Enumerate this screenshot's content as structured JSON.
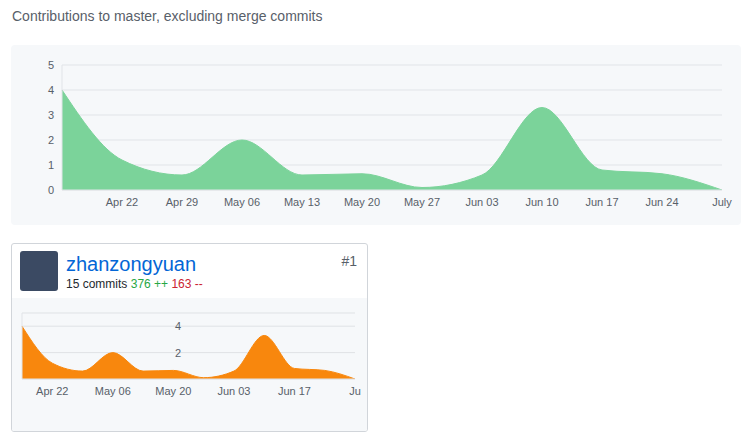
{
  "title": "Contributions to master, excluding merge commits",
  "chart_data": [
    {
      "type": "area",
      "categories": [
        null,
        "Apr 22",
        "Apr 29",
        "May 06",
        "May 13",
        "May 20",
        "May 27",
        "Jun 03",
        "Jun 10",
        "Jun 17",
        "Jun 24",
        "July"
      ],
      "values": [
        4,
        1.2,
        0.6,
        2,
        0.6,
        0.65,
        0.1,
        0.6,
        3.3,
        0.8,
        0.65,
        0
      ],
      "color": "#7bd39a",
      "ylim": [
        0,
        5
      ],
      "yticks": [
        0,
        1,
        2,
        3,
        4,
        5
      ],
      "grid": true
    },
    {
      "type": "area",
      "categories": [
        null,
        "Apr 22",
        null,
        "May 06",
        null,
        "May 20",
        null,
        "Jun 03",
        null,
        "Jun 17",
        null,
        "Ju"
      ],
      "values": [
        4,
        1.2,
        0.6,
        2,
        0.6,
        0.65,
        0.1,
        0.6,
        3.3,
        0.8,
        0.65,
        0
      ],
      "color": "#f8870d",
      "ylim": [
        0,
        5
      ],
      "yticks": [
        2,
        4
      ],
      "grid": true
    }
  ],
  "contributor": {
    "rank": "#1",
    "name": "zhanzongyuan",
    "commits": "15 commits",
    "additions": "376 ++",
    "deletions": "163 --"
  }
}
